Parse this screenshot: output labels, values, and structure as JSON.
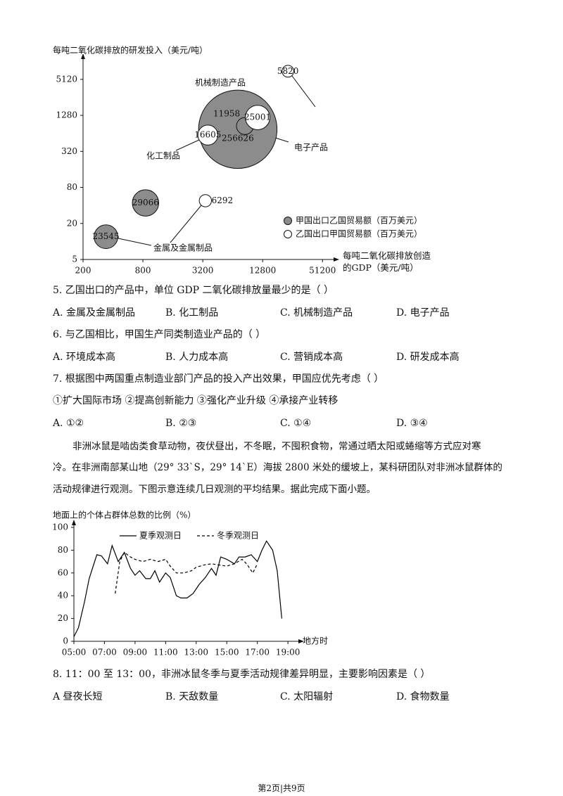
{
  "chart_data": [
    {
      "type": "bubble",
      "ylabel": "每吨二氧化碳排放的研发投入（美元/吨）",
      "xlabel": "每吨二氧化碳排放创造的GDP（美元/吨）",
      "log_x": true,
      "log_y": true,
      "xlim": [
        200,
        62000
      ],
      "xticks": [
        200,
        800,
        3200,
        12800,
        51200
      ],
      "ylim": [
        5,
        9000
      ],
      "yticks": [
        5,
        20,
        80,
        320,
        1280,
        5120
      ],
      "legend": "lower right",
      "series": [
        {
          "name": "甲国出口乙国贸易额（百万美元）",
          "color": "#8c8c8c",
          "x": [
            340,
            850,
            7200,
            8500
          ],
          "values": [
            12,
            44,
            750,
            850
          ],
          "sizes": [
            23545,
            29066,
            256626,
            11958
          ]
        },
        {
          "name": "乙国出口甲国贸易额（百万美元）",
          "color": "#ffffff",
          "x": [
            3400,
            3600,
            11400,
            23000
          ],
          "values": [
            48,
            600,
            1180,
            7000
          ],
          "sizes": [
            6292,
            16605,
            25001,
            5820
          ]
        }
      ],
      "annotations": [
        "金属及金属制品",
        "化工制品",
        "机械制造产品",
        "电子产品"
      ]
    },
    {
      "type": "line",
      "ylabel": "地面上的个体占群体总数的比例（%）",
      "xlabel": "地方时",
      "xlim": [
        5,
        19.5
      ],
      "xticks": [
        {
          "value": 5,
          "label": "05:00"
        },
        {
          "value": 7,
          "label": "07:00"
        },
        {
          "value": 9,
          "label": "09:00"
        },
        {
          "value": 11,
          "label": "11:00"
        },
        {
          "value": 13,
          "label": "13:00"
        },
        {
          "value": 15,
          "label": "15:00"
        },
        {
          "value": 17,
          "label": "17:00"
        },
        {
          "value": 19,
          "label": "19:00"
        }
      ],
      "ylim": [
        0,
        100
      ],
      "yticks": [
        0,
        20,
        40,
        60,
        80,
        100
      ],
      "series": [
        {
          "name": "夏季观测日",
          "color": "#000000",
          "dash": false,
          "x": [
            5.0,
            5.3,
            5.7,
            6.0,
            6.5,
            6.8,
            7.2,
            7.5,
            7.9,
            8.3,
            8.7,
            9.0,
            9.3,
            9.7,
            10.0,
            10.3,
            10.6,
            11.0,
            11.3,
            11.7,
            12.0,
            12.4,
            12.8,
            13.2,
            13.6,
            14.0,
            14.3,
            14.6,
            15.0,
            15.5,
            15.8,
            16.2,
            16.6,
            17.0,
            17.3,
            17.6,
            18.0,
            18.3,
            18.6
          ],
          "values": [
            4,
            12,
            35,
            55,
            76,
            75,
            68,
            84,
            70,
            78,
            64,
            58,
            62,
            55,
            55,
            62,
            52,
            60,
            56,
            40,
            38,
            38,
            42,
            50,
            56,
            64,
            58,
            74,
            72,
            68,
            74,
            74,
            76,
            70,
            80,
            88,
            80,
            62,
            20
          ]
        },
        {
          "name": "冬季观测日",
          "color": "#000000",
          "dash": true,
          "x": [
            7.7,
            8.0,
            8.3,
            8.7,
            9.0,
            9.5,
            10.0,
            10.5,
            11.0,
            11.3,
            11.7,
            12.2,
            12.7,
            13.0,
            13.5,
            14.0,
            14.5,
            15.0,
            15.5,
            16.0,
            16.3,
            16.7,
            17.0
          ],
          "values": [
            42,
            70,
            78,
            74,
            72,
            70,
            72,
            70,
            72,
            66,
            60,
            60,
            62,
            65,
            67,
            68,
            67,
            66,
            68,
            72,
            68,
            60,
            68
          ]
        }
      ]
    }
  ],
  "questions": [
    {
      "text": "5. 乙国出口的产品中，单位 GDP 二氧化碳排放量最少的是（    ）",
      "options": [
        "A. 金属及金属制品",
        "B. 化工制品",
        "C. 机械制造产品",
        "D. 电子产品"
      ]
    },
    {
      "text": "6. 与乙国相比，甲国生产同类制造业产品的（    ）",
      "options": [
        "A. 环境成本高",
        "B. 人力成本高",
        "C. 营销成本高",
        "D. 研发成本高"
      ]
    },
    {
      "text": "7. 根据图中两国重点制造业部门产品的投入产出效果，甲国应优先考虑（    ）",
      "statements": "①扩大国际市场 ②提高创新能力 ③强化产业升级 ④承接产业转移",
      "options": [
        "A. ①②",
        "B. ②③",
        "C. ①④",
        "D. ③④"
      ]
    },
    {
      "text": "8. 11：00 至 13：00，非洲冰鼠冬季与夏季活动规律差异明显，主要影响因素是（    ）",
      "options": [
        "A  昼夜长短",
        "B. 天敌数量",
        "C. 太阳辐射",
        "D. 食物数量"
      ]
    }
  ],
  "passage": [
    "非洲冰鼠是啮齿类食草动物，夜伏昼出，不冬眠，不囤积食物，常通过晒太阳或蜷缩等方式应对寒",
    "冷。在非洲南部某山地（29° 33`S，29° 14`E）海拔 2800 米处的缓坡上，某科研团队对非洲冰鼠群体的",
    "活动规律进行观测。下图示意连续几日观测的平均结果。据此完成下面小题。"
  ],
  "footer": "第2页|共9页"
}
